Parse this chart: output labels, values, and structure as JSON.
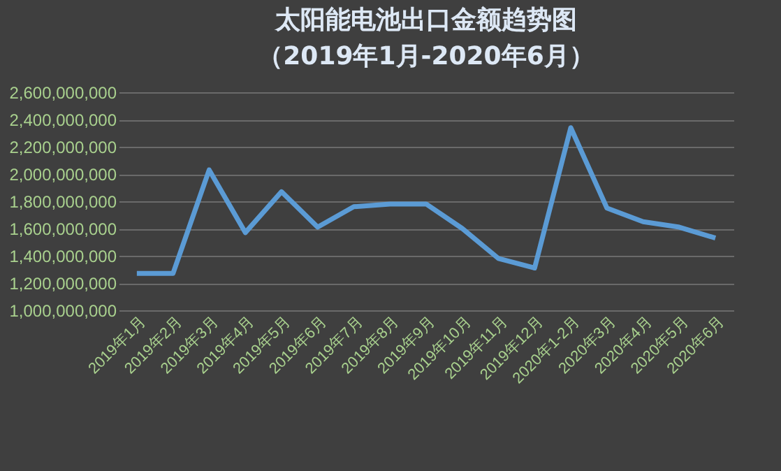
{
  "chart_data": {
    "type": "line",
    "title": [
      "太阳能电池出口金额趋势图",
      "（2019年1月-2020年6月）"
    ],
    "categories": [
      "2019年1月",
      "2019年2月",
      "2019年3月",
      "2019年4月",
      "2019年5月",
      "2019年6月",
      "2019年7月",
      "2019年8月",
      "2019年9月",
      "2019年10月",
      "2019年11月",
      "2019年12月",
      "2020年1-2月",
      "2020年3月",
      "2020年4月",
      "2020年5月",
      "2020年6月"
    ],
    "series": [
      {
        "color": "#5b9bd5",
        "values": [
          1270000000,
          1270000000,
          2030000000,
          1570000000,
          1870000000,
          1610000000,
          1760000000,
          1780000000,
          1780000000,
          1600000000,
          1380000000,
          1310000000,
          2340000000,
          1750000000,
          1650000000,
          1610000000,
          1530000000
        ]
      }
    ],
    "ylim": [
      1000000000,
      2600000000
    ],
    "yticks": [
      {
        "value": 1000000000,
        "label": "1,000,000,000"
      },
      {
        "value": 1200000000,
        "label": "1,200,000,000"
      },
      {
        "value": 1400000000,
        "label": "1,400,000,000"
      },
      {
        "value": 1600000000,
        "label": "1,600,000,000"
      },
      {
        "value": 1800000000,
        "label": "1,800,000,000"
      },
      {
        "value": 2000000000,
        "label": "2,000,000,000"
      },
      {
        "value": 2200000000,
        "label": "2,200,000,000"
      },
      {
        "value": 2400000000,
        "label": "2,400,000,000"
      },
      {
        "value": 2600000000,
        "label": "2,600,000,000"
      }
    ],
    "grid": "y",
    "marker": "none",
    "line_style": "solid"
  }
}
